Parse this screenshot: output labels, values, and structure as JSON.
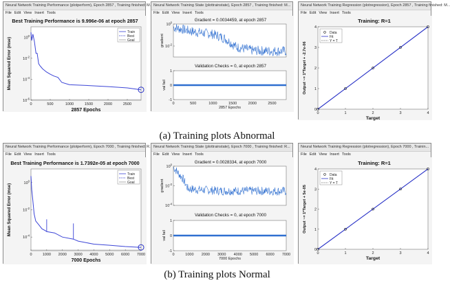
{
  "menu": [
    "File",
    "Edit",
    "View",
    "Insert",
    "Tools"
  ],
  "rows": [
    {
      "caption": "(a) Training plots Abnormal",
      "performance": {
        "window_title": "Neural Network Training Performance (plotperform), Epoch 2857 , Training finished: M...",
        "title": "Best Training Performance is 9.996e-06 at epoch 2857",
        "xlabel": "2857 Epochs",
        "ylabel": "Mean Squared Error (mse)",
        "xticks": [
          "0",
          "500",
          "1000",
          "1500",
          "2000",
          "2500"
        ],
        "yticks": [
          "10^0",
          "10^-2",
          "10^-4",
          "10^-6"
        ],
        "legend": [
          "Train",
          "Best",
          "Goal"
        ]
      },
      "state": {
        "window_title": "Neural Network Training State (plottrainstate), Epoch 2857 , Training finished: M...",
        "gradient_title": "Gradient = 0.0034459, at epoch 2857",
        "gradient_ylabel": "gradient",
        "gradient_yticks": [
          "10^0",
          "10^-2"
        ],
        "val_title": "Validation Checks = 0, at epoch 2857",
        "val_ylabel": "val fail",
        "val_yticks": [
          "1",
          "0",
          "-1"
        ],
        "xticks": [
          "0",
          "500",
          "1000",
          "1500",
          "2000",
          "2500"
        ],
        "xlabel": "2857 Epochs"
      },
      "regression": {
        "window_title": "Neural Network Training Regression (plotregression), Epoch 2857 , Training finished: M...",
        "title": "Training: R=1",
        "ylabel": "Output ~= 1*Target + -2.7e-06",
        "xlabel": "Target",
        "xticks": [
          "0",
          "1",
          "2",
          "3",
          "4"
        ],
        "yticks": [
          "0",
          "1",
          "2",
          "3",
          "4"
        ],
        "legend": [
          "Data",
          "Fit",
          "Y = T"
        ]
      }
    },
    {
      "caption": "(b) Training plots Normal",
      "performance": {
        "window_title": "Neural Network Training Performance (plotperform), Epoch 7000 , Training finished: R...",
        "title": "Best Training Performance is 1.7392e-05 at epoch 7000",
        "xlabel": "7000 Epochs",
        "ylabel": "Mean Squared Error (mse)",
        "xticks": [
          "0",
          "1000",
          "2000",
          "3000",
          "4000",
          "5000",
          "6000",
          "7000"
        ],
        "yticks": [
          "10^0",
          "10^-2",
          "10^-4"
        ],
        "legend": [
          "Train",
          "Best",
          "Goal"
        ]
      },
      "state": {
        "window_title": "Neural Network Training State (plottrainstate), Epoch 7000 , Training finished: R...",
        "gradient_title": "Gradient = 0.0028334, at epoch 7000",
        "gradient_ylabel": "gradient",
        "gradient_yticks": [
          "10^0",
          "10^-2",
          "10^-4"
        ],
        "val_title": "Validation Checks = 0, at epoch 7000",
        "val_ylabel": "val fail",
        "val_yticks": [
          "1",
          "0",
          "-1"
        ],
        "xticks": [
          "0",
          "1000",
          "2000",
          "3000",
          "4000",
          "5000",
          "6000",
          "7000"
        ],
        "xlabel": "7000 Epochs"
      },
      "regression": {
        "window_title": "Neural Network Training Regression (plotregression), Epoch 7000 , Trainin...",
        "title": "Training: R=1",
        "ylabel": "Output ~= 1*Target + 5e-05",
        "xlabel": "Target",
        "xticks": [
          "0",
          "1",
          "2",
          "3",
          "4"
        ],
        "yticks": [
          "0",
          "1",
          "2",
          "3",
          "4"
        ],
        "legend": [
          "Data",
          "Fit",
          "Y = T"
        ]
      }
    }
  ],
  "chart_data": [
    {
      "type": "line",
      "panel": "performance-abnormal",
      "title": "Best Training Performance is 9.996e-06 at epoch 2857",
      "xlabel": "2857 Epochs",
      "ylabel": "Mean Squared Error (mse)",
      "yscale": "log",
      "xlim": [
        0,
        2857
      ],
      "ylim": [
        1e-06,
        10
      ],
      "series": [
        {
          "name": "Train",
          "x": [
            0,
            20,
            50,
            90,
            130,
            160,
            200,
            230,
            260,
            300,
            400,
            500,
            600,
            700,
            800,
            1000,
            1500,
            2000,
            2500,
            2857
          ],
          "y": [
            3,
            0.5,
            2,
            0.4,
            0.03,
            0.03,
            0.003,
            0.002,
            0.0015,
            0.001,
            0.0005,
            0.0003,
            0.0002,
            0.00015,
            5e-05,
            3e-05,
            2.5e-05,
            2e-05,
            1.5e-05,
            1e-05
          ]
        },
        {
          "name": "Goal",
          "x": [
            0,
            2857
          ],
          "y": [
            1e-06,
            1e-06
          ]
        }
      ],
      "best_point": {
        "x": 2857,
        "y": 1e-05
      }
    },
    {
      "type": "line",
      "panel": "gradient-abnormal",
      "title": "Gradient = 0.0034459, at epoch 2857",
      "yscale": "log",
      "xlim": [
        0,
        2857
      ],
      "ylim": [
        0.001,
        1
      ],
      "trend": {
        "x": [
          0,
          500,
          1000,
          1300,
          1600,
          2000,
          2400,
          2857
        ],
        "y": [
          0.5,
          0.2,
          0.12,
          0.05,
          0.008,
          0.004,
          0.0035,
          0.0034459
        ]
      }
    },
    {
      "type": "line",
      "panel": "validation-abnormal",
      "title": "Validation Checks = 0, at epoch 2857",
      "xlim": [
        0,
        2857
      ],
      "ylim": [
        -1,
        1
      ],
      "series": [
        {
          "x": [
            0,
            2857
          ],
          "y": [
            0,
            0
          ]
        }
      ]
    },
    {
      "type": "scatter",
      "panel": "regression-abnormal",
      "title": "Training: R=1",
      "xlabel": "Target",
      "ylabel": "Output ~= 1*Target + -2.7e-06",
      "xlim": [
        0,
        4
      ],
      "ylim": [
        0,
        4
      ],
      "series": [
        {
          "name": "Data",
          "x": [
            0,
            1,
            2,
            3,
            4
          ],
          "y": [
            0,
            1,
            2,
            3,
            4
          ]
        },
        {
          "name": "Fit",
          "x": [
            0,
            4
          ],
          "y": [
            0,
            4
          ]
        },
        {
          "name": "Y = T",
          "x": [
            0,
            4
          ],
          "y": [
            0,
            4
          ]
        }
      ]
    },
    {
      "type": "line",
      "panel": "performance-normal",
      "title": "Best Training Performance is 1.7392e-05 at epoch 7000",
      "xlabel": "7000 Epochs",
      "ylabel": "Mean Squared Error (mse)",
      "yscale": "log",
      "xlim": [
        0,
        7000
      ],
      "ylim": [
        1e-05,
        10
      ],
      "series": [
        {
          "name": "Train",
          "x": [
            0,
            50,
            120,
            200,
            300,
            500,
            700,
            900,
            1000,
            1500,
            2000,
            2700,
            3000,
            4000,
            5000,
            6000,
            7000
          ],
          "y": [
            3,
            0.3,
            0.05,
            0.005,
            0.0015,
            0.0008,
            0.0004,
            0.0003,
            0.00025,
            0.0002,
            0.0001,
            7e-05,
            5e-05,
            3e-05,
            2.5e-05,
            2e-05,
            1.7392e-05
          ]
        },
        {
          "name": "Goal",
          "x": [
            0,
            7000
          ],
          "y": [
            1e-05,
            1e-05
          ]
        }
      ],
      "spikes": [
        {
          "x": 1000,
          "y": 0.002
        },
        {
          "x": 2700,
          "y": 0.001
        }
      ],
      "best_point": {
        "x": 7000,
        "y": 1.7392e-05
      }
    },
    {
      "type": "line",
      "panel": "gradient-normal",
      "title": "Gradient = 0.0028334, at epoch 7000",
      "yscale": "log",
      "xlim": [
        0,
        7000
      ],
      "ylim": [
        0.0001,
        1
      ],
      "trend": {
        "x": [
          0,
          300,
          600,
          900,
          1500,
          3000,
          5000,
          7000
        ],
        "y": [
          0.8,
          0.2,
          0.05,
          0.005,
          0.004,
          0.003,
          0.003,
          0.0028334
        ]
      }
    },
    {
      "type": "line",
      "panel": "validation-normal",
      "title": "Validation Checks = 0, at epoch 7000",
      "xlim": [
        0,
        7000
      ],
      "ylim": [
        -1,
        1
      ],
      "series": [
        {
          "x": [
            0,
            7000
          ],
          "y": [
            0,
            0
          ]
        }
      ]
    },
    {
      "type": "scatter",
      "panel": "regression-normal",
      "title": "Training: R=1",
      "xlabel": "Target",
      "ylabel": "Output ~= 1*Target + 5e-05",
      "xlim": [
        0,
        4
      ],
      "ylim": [
        0,
        4
      ],
      "series": [
        {
          "name": "Data",
          "x": [
            0,
            1,
            2,
            3,
            4
          ],
          "y": [
            0,
            1,
            2,
            3,
            4
          ]
        },
        {
          "name": "Fit",
          "x": [
            0,
            4
          ],
          "y": [
            0,
            4
          ]
        },
        {
          "name": "Y = T",
          "x": [
            0,
            4
          ],
          "y": [
            0,
            4
          ]
        }
      ]
    }
  ]
}
